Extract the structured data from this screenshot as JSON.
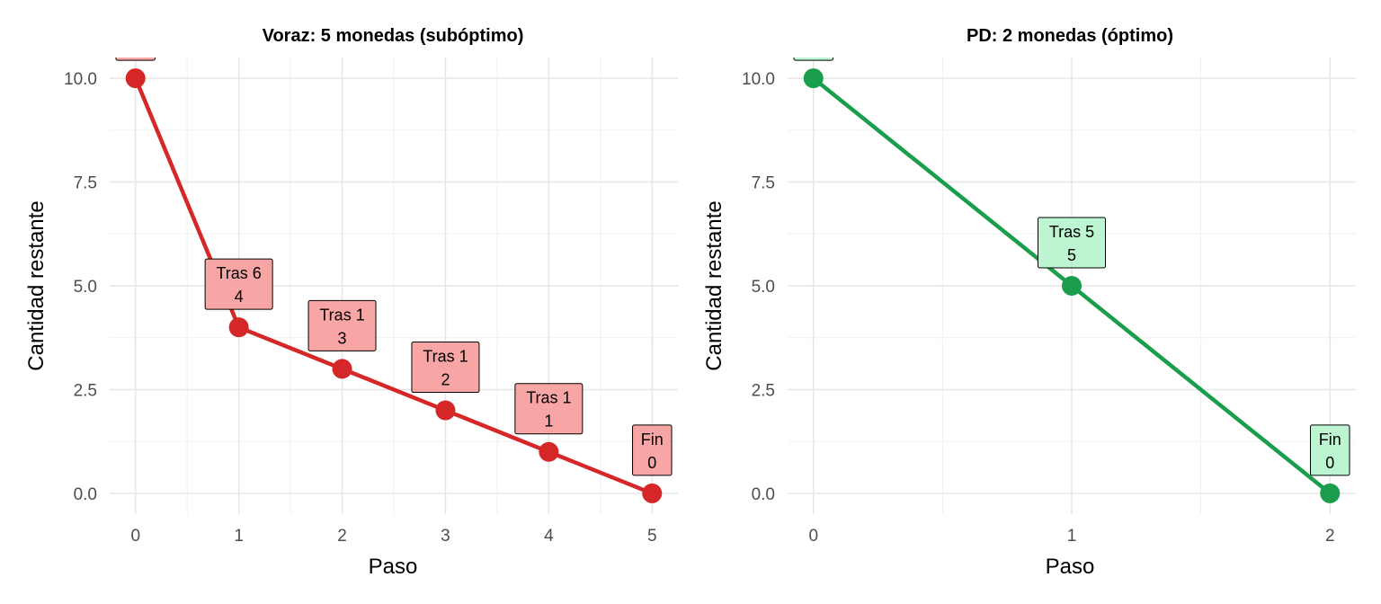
{
  "chart_data": [
    {
      "type": "line",
      "title": "Voraz: 5 monedas (subóptimo)",
      "xlabel": "Paso",
      "ylabel": "Cantidad restante",
      "x": [
        0,
        1,
        2,
        3,
        4,
        5
      ],
      "y": [
        10,
        4,
        3,
        2,
        1,
        0
      ],
      "xlim": [
        -0.25,
        5.25
      ],
      "ylim": [
        -0.5,
        10.5
      ],
      "xticks": [
        "0",
        "1",
        "2",
        "3",
        "4",
        "5"
      ],
      "yticks": [
        "0.0",
        "2.5",
        "5.0",
        "7.5",
        "10.0"
      ],
      "point_labels": [
        {
          "line1": "",
          "line2": ""
        },
        {
          "line1": "Tras 6",
          "line2": "4"
        },
        {
          "line1": "Tras 1",
          "line2": "3"
        },
        {
          "line1": "Tras 1",
          "line2": "2"
        },
        {
          "line1": "Tras 1",
          "line2": "1"
        },
        {
          "line1": "Fin",
          "line2": "0"
        }
      ],
      "color": "#d62728",
      "label_fill": "#f8a5a5",
      "grid": true
    },
    {
      "type": "line",
      "title": "PD: 2 monedas (óptimo)",
      "xlabel": "Paso",
      "ylabel": "Cantidad restante",
      "x": [
        0,
        1,
        2
      ],
      "y": [
        10,
        5,
        0
      ],
      "xlim": [
        -0.1,
        2.1
      ],
      "ylim": [
        -0.5,
        10.5
      ],
      "xticks": [
        "0",
        "1",
        "2"
      ],
      "yticks": [
        "0.0",
        "2.5",
        "5.0",
        "7.5",
        "10.0"
      ],
      "point_labels": [
        {
          "line1": "",
          "line2": ""
        },
        {
          "line1": "Tras 5",
          "line2": "5"
        },
        {
          "line1": "Fin",
          "line2": "0"
        }
      ],
      "color": "#1a9e4b",
      "label_fill": "#bdf4d2",
      "grid": true
    }
  ]
}
